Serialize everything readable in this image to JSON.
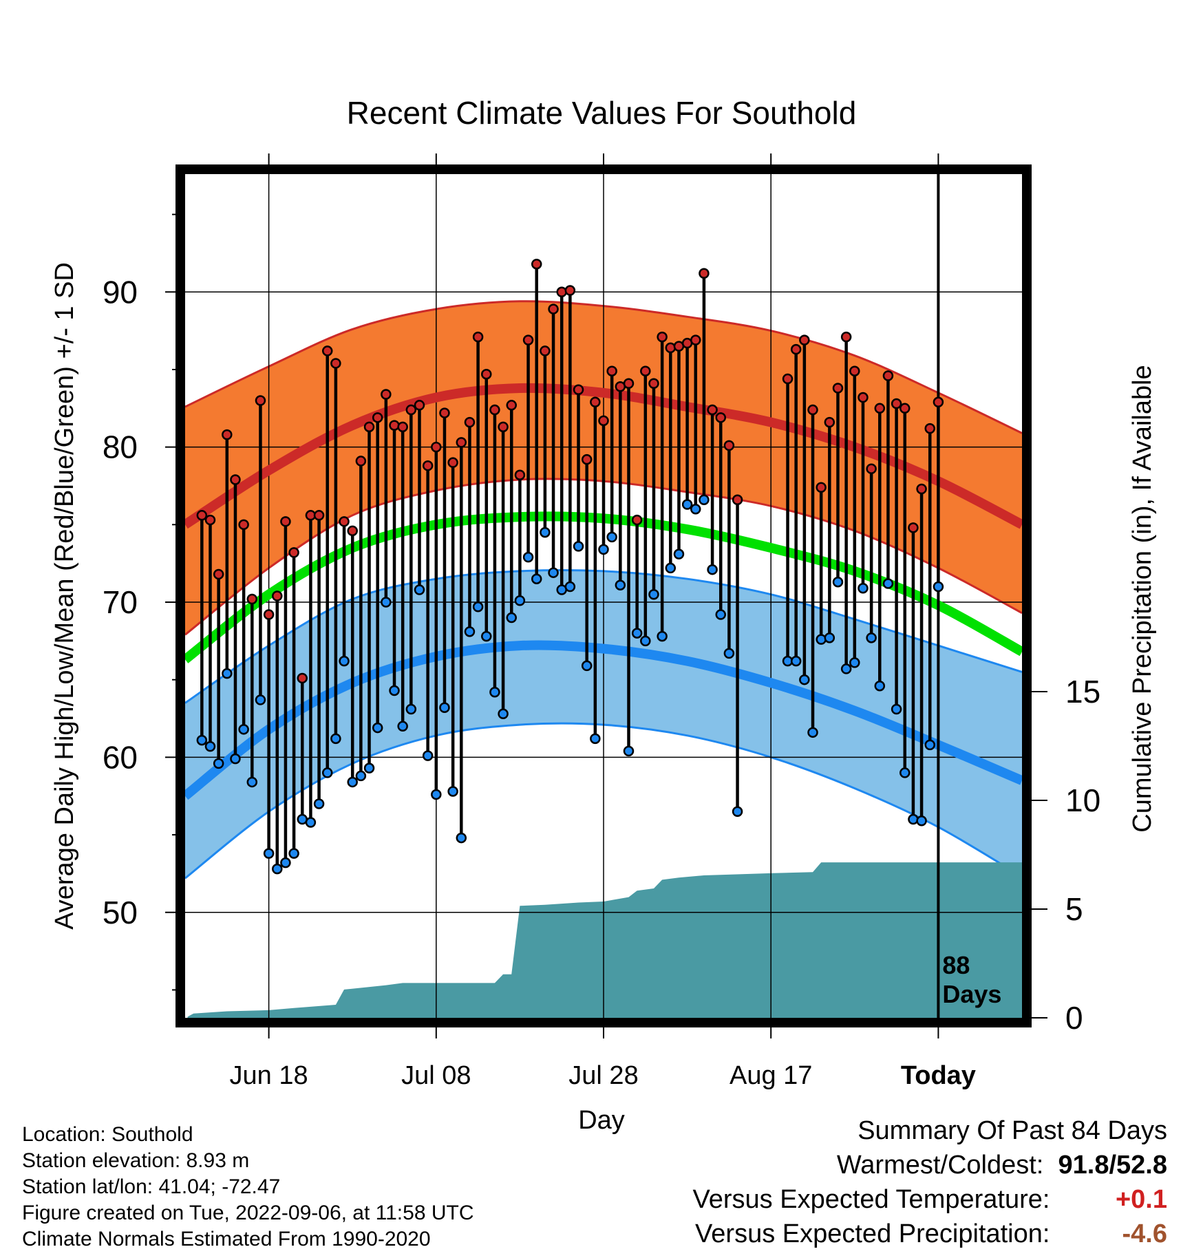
{
  "title": "Recent Climate Values For Southold",
  "footer": {
    "location": "Location: Southold",
    "elevation": "Station elevation: 8.93 m",
    "latlon": "Station lat/lon: 41.04; -72.47",
    "created": "Figure created on Tue, 2022-09-06, at 11:58 UTC",
    "normals": "Climate Normals Estimated From 1990-2020"
  },
  "summary": {
    "heading": "Summary Of Past 84 Days",
    "warmest_coldest_label": "Warmest/Coldest:",
    "warmest": "91.8",
    "sep": "/",
    "coldest": "52.8",
    "temp_label": "Versus Expected Temperature:",
    "temp_value": "+0.1",
    "precip_label": "Versus Expected Precipitation:",
    "precip_value": "-4.6"
  },
  "colors": {
    "high": "#cc2a28",
    "high_band": "#f47a30",
    "low": "#1e88f0",
    "low_band": "#85c1e9",
    "mean": "#00e000",
    "precip": "#4a9aa3",
    "temp_value": "#d02020",
    "precip_value": "#a0522d"
  },
  "chart_data": {
    "type": "line",
    "xlabel": "Day",
    "ylabel": "Average Daily High/Low/Mean (Red/Blue/Green) +/- 1 SD",
    "y2label": "Cumulative Precipitation (in), If Available",
    "ylim": [
      43.2,
      97.6
    ],
    "y_ticks": [
      50,
      60,
      70,
      80,
      90
    ],
    "y2lim": [
      0,
      38.8
    ],
    "y2_ticks": [
      0,
      5,
      10,
      15
    ],
    "x_ticks": [
      "Jun 18",
      "Jul 08",
      "Jul 28",
      "Aug 17",
      "Today"
    ],
    "x_tick_days": [
      10,
      30,
      50,
      70,
      90
    ],
    "x_range_days": [
      0,
      100
    ],
    "today_day": 90,
    "today_marker": [
      "88",
      "Days"
    ],
    "grid": true,
    "normals": {
      "days": [
        0,
        10,
        20,
        30,
        40,
        50,
        60,
        70,
        80,
        90,
        100
      ],
      "high": [
        75.0,
        78.5,
        81.4,
        83.2,
        83.8,
        83.5,
        82.6,
        81.6,
        80.0,
        77.8,
        75.0
      ],
      "high_upper": [
        82.6,
        85.2,
        87.6,
        88.9,
        89.4,
        89.1,
        88.4,
        87.5,
        85.9,
        83.5,
        80.9
      ],
      "high_lower": [
        67.9,
        72.2,
        75.6,
        77.2,
        77.9,
        77.8,
        77.1,
        76.2,
        74.6,
        72.2,
        69.3
      ],
      "low": [
        57.5,
        61.8,
        64.8,
        66.5,
        67.2,
        67.0,
        66.2,
        64.8,
        63.0,
        60.8,
        58.5
      ],
      "low_upper": [
        63.5,
        67.2,
        70.2,
        71.5,
        72.0,
        72.0,
        71.5,
        70.5,
        68.9,
        67.2,
        65.5
      ],
      "low_lower": [
        52.2,
        56.5,
        59.6,
        61.4,
        62.1,
        62.1,
        61.4,
        60.0,
        58.0,
        55.5,
        52.3
      ],
      "mean": [
        66.3,
        70.5,
        73.5,
        75.0,
        75.5,
        75.4,
        74.7,
        73.5,
        72.0,
        69.8,
        66.8
      ]
    },
    "daily_start_day": 2,
    "daily_high": [
      75.6,
      75.3,
      71.8,
      80.8,
      77.9,
      75.0,
      70.2,
      83.0,
      69.2,
      70.4,
      75.2,
      73.2,
      65.1,
      75.6,
      75.6,
      86.2,
      85.4,
      75.2,
      74.6,
      79.1,
      81.3,
      81.9,
      83.4,
      81.4,
      81.3,
      82.4,
      82.7,
      78.8,
      80.0,
      82.2,
      79.0,
      80.3,
      81.6,
      87.1,
      84.7,
      82.4,
      81.3,
      82.7,
      78.2,
      86.9,
      91.8,
      86.2,
      88.9,
      90.0,
      90.1,
      83.7,
      79.2,
      82.9,
      81.7,
      84.9,
      83.9,
      84.1,
      75.3,
      84.9,
      84.1,
      87.1,
      86.4,
      86.5,
      86.7,
      86.9,
      91.2,
      82.4,
      81.9,
      80.1,
      76.6,
      null,
      null,
      null,
      null,
      null,
      84.4,
      86.3,
      86.9,
      82.4,
      77.4,
      81.6,
      83.8,
      87.1,
      84.9,
      83.2,
      78.6,
      82.5,
      84.6,
      82.8,
      82.5,
      74.8,
      77.3,
      81.2,
      82.9
    ],
    "daily_low": [
      61.1,
      60.7,
      59.6,
      65.4,
      59.9,
      61.8,
      58.4,
      63.7,
      53.8,
      52.8,
      53.2,
      53.8,
      56.0,
      55.8,
      57.0,
      59.0,
      61.2,
      66.2,
      58.4,
      58.8,
      59.3,
      61.9,
      70.0,
      64.3,
      62.0,
      63.1,
      70.8,
      60.1,
      57.6,
      63.2,
      57.8,
      54.8,
      68.1,
      69.7,
      67.8,
      64.2,
      62.8,
      69.0,
      70.1,
      72.9,
      71.5,
      74.5,
      71.9,
      70.8,
      71.0,
      73.6,
      65.9,
      61.2,
      73.4,
      74.2,
      71.1,
      60.4,
      68.0,
      67.5,
      70.5,
      67.8,
      72.2,
      73.1,
      76.3,
      76.0,
      76.6,
      72.1,
      69.2,
      66.7,
      56.5,
      null,
      null,
      null,
      null,
      null,
      66.2,
      66.2,
      65.0,
      61.6,
      67.6,
      67.7,
      71.3,
      65.7,
      66.1,
      70.9,
      67.7,
      64.6,
      71.2,
      63.1,
      59.0,
      56.0,
      55.9,
      60.8,
      71.0
    ],
    "precip_cumulative": {
      "days": [
        0.3,
        1,
        5,
        10,
        13,
        18,
        19,
        24,
        26,
        27,
        30,
        37,
        38,
        39,
        40,
        43,
        47,
        50,
        53,
        54,
        56,
        57,
        59,
        62,
        70,
        75,
        76,
        79,
        100
      ],
      "values": [
        0.05,
        0.2,
        0.3,
        0.35,
        0.45,
        0.6,
        1.3,
        1.5,
        1.6,
        1.6,
        1.6,
        1.6,
        2.0,
        2.0,
        5.15,
        5.2,
        5.3,
        5.35,
        5.55,
        5.85,
        5.95,
        6.35,
        6.45,
        6.55,
        6.65,
        6.7,
        7.15,
        7.15,
        7.15
      ]
    }
  }
}
